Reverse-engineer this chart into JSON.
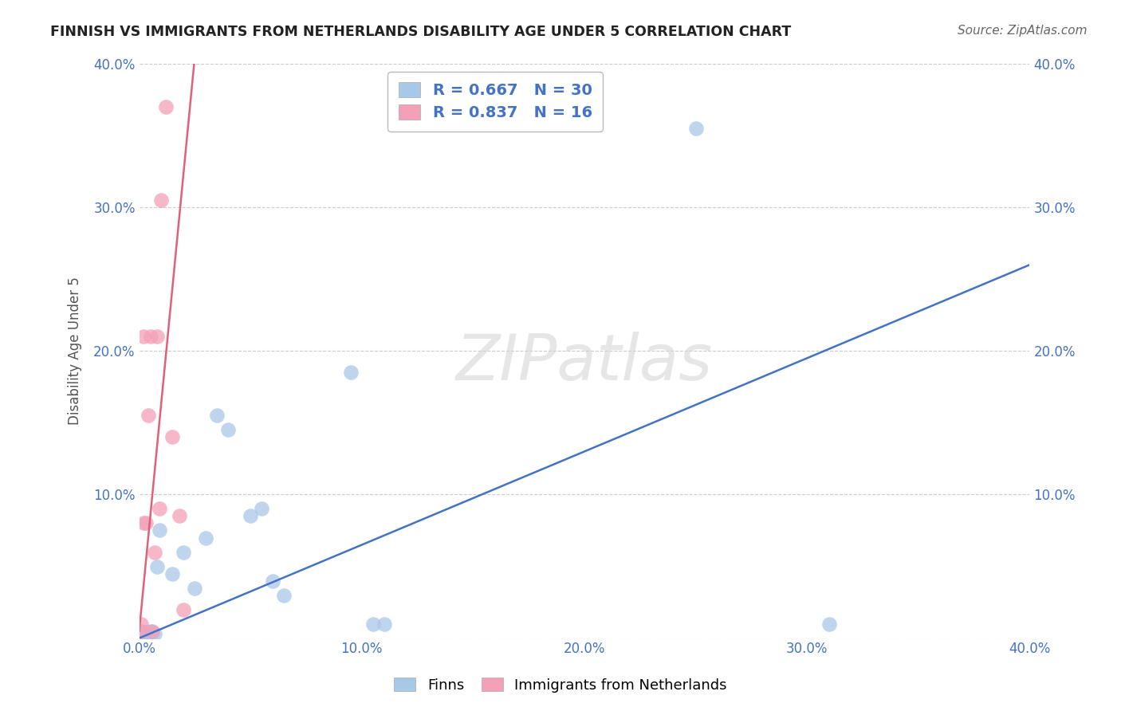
{
  "title": "FINNISH VS IMMIGRANTS FROM NETHERLANDS DISABILITY AGE UNDER 5 CORRELATION CHART",
  "source": "Source: ZipAtlas.com",
  "ylabel": "Disability Age Under 5",
  "xlabel": "",
  "xlim": [
    0.0,
    0.4
  ],
  "ylim": [
    0.0,
    0.4
  ],
  "xticks": [
    0.0,
    0.1,
    0.2,
    0.3,
    0.4
  ],
  "yticks": [
    0.0,
    0.1,
    0.2,
    0.3,
    0.4
  ],
  "xticklabels": [
    "0.0%",
    "10.0%",
    "20.0%",
    "30.0%",
    "40.0%"
  ],
  "yticklabels": [
    "",
    "10.0%",
    "20.0%",
    "30.0%",
    "40.0%"
  ],
  "blue_color": "#A8C8E8",
  "pink_color": "#F4A0B8",
  "blue_line_color": "#4472C4",
  "pink_line_color": "#E0607A",
  "legend_text_color": "#4472C4",
  "watermark": "ZIPatlas",
  "legend_label1": "Finns",
  "legend_label2": "Immigrants from Netherlands",
  "finns_x": [
    0.001,
    0.001,
    0.002,
    0.002,
    0.002,
    0.003,
    0.003,
    0.003,
    0.004,
    0.005,
    0.005,
    0.006,
    0.007,
    0.008,
    0.009,
    0.015,
    0.02,
    0.025,
    0.03,
    0.035,
    0.04,
    0.05,
    0.055,
    0.06,
    0.065,
    0.095,
    0.105,
    0.11,
    0.25,
    0.31
  ],
  "finns_y": [
    0.002,
    0.003,
    0.002,
    0.003,
    0.004,
    0.002,
    0.003,
    0.004,
    0.003,
    0.004,
    0.005,
    0.004,
    0.003,
    0.05,
    0.075,
    0.045,
    0.06,
    0.035,
    0.07,
    0.155,
    0.145,
    0.085,
    0.09,
    0.04,
    0.03,
    0.185,
    0.01,
    0.01,
    0.355,
    0.01
  ],
  "nl_x": [
    0.001,
    0.001,
    0.002,
    0.002,
    0.003,
    0.004,
    0.005,
    0.006,
    0.007,
    0.008,
    0.009,
    0.01,
    0.012,
    0.015,
    0.018,
    0.02
  ],
  "nl_y": [
    0.005,
    0.01,
    0.08,
    0.21,
    0.08,
    0.155,
    0.21,
    0.005,
    0.06,
    0.21,
    0.09,
    0.305,
    0.37,
    0.14,
    0.085,
    0.02
  ],
  "blue_line_x0": 0.0,
  "blue_line_y0": 0.0,
  "blue_line_x1": 0.4,
  "blue_line_y1": 0.26,
  "pink_line_x0": 0.0,
  "pink_line_y0": 0.005,
  "pink_line_x1": 0.025,
  "pink_line_y1": 0.405
}
